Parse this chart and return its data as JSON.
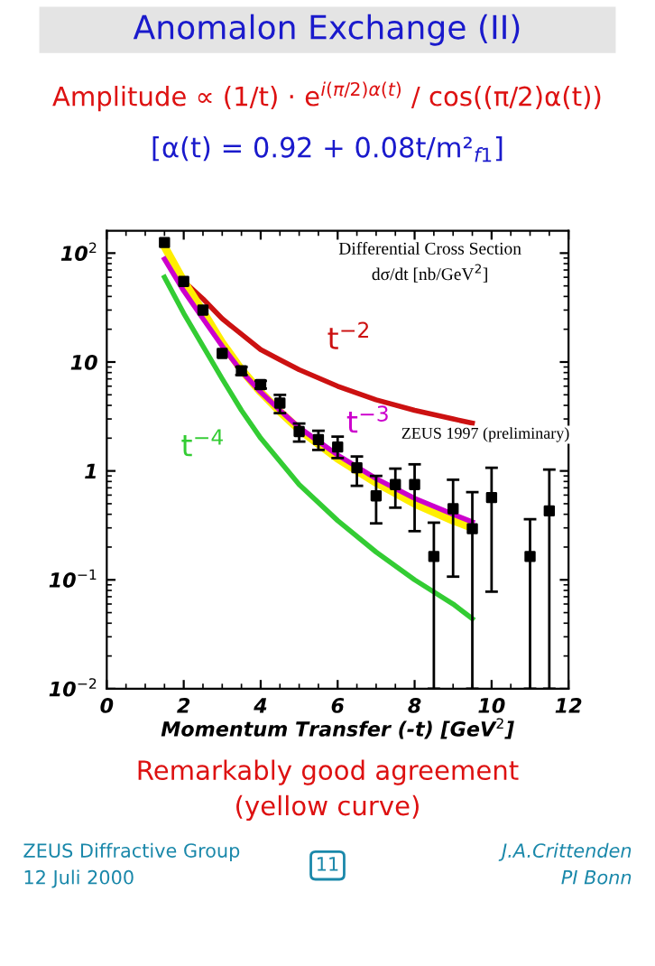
{
  "chart_data": {
    "type": "line",
    "title": "Anomalon Exchange (II)",
    "subtitle": "Amplitude ∝ (1/t) · e$^{i(π/2)α(t)}$ / cos((π/2)α(t))",
    "xlabel": "Momentum Transfer (-t) [GeV$^{2}$]",
    "ylabel": "Differential Cross Section\ndσ/dt [nb/GeV$^{2}$]",
    "annotations": [
      "[α(t) = 0.92 + 0.08t/m²$_{f1}$]",
      "Remarkably good agreement\n(yellow curve)",
      "ZEUS Diffractive Group\n12 Juli 2000",
      "11",
      "J.A.Crittenden\nPI Bonn"
    ],
    "log": "y",
    "xlim": [
      0,
      12
    ],
    "xticks": [
      0,
      2,
      4,
      6,
      8,
      10,
      12
    ],
    "ylim": [
      0.01,
      160
    ],
    "yticks": [
      {
        "value": 0.01,
        "label": "10$^{−2}$"
      },
      {
        "value": 0.1,
        "label": "10$^{−1}$"
      },
      {
        "value": 1,
        "label": "1"
      },
      {
        "value": 10,
        "label": "10"
      },
      {
        "value": 100,
        "label": "10$^{2}$"
      }
    ],
    "grid": false,
    "line_style": "solid",
    "series": [
      {
        "name": "t$^{−2}$",
        "color": "#cc1111",
        "x": [
          1.7,
          2,
          2.5,
          3,
          3.5,
          4,
          4.5,
          5,
          6,
          7,
          8,
          9,
          9.5
        ],
        "values": [
          83,
          55,
          38,
          25,
          18,
          13,
          10.5,
          8.5,
          6,
          4.5,
          3.6,
          3,
          2.75
        ]
      },
      {
        "name": "t$^{−4}$",
        "color": "#33cc33",
        "x": [
          1.5,
          2,
          2.5,
          3,
          3.5,
          4,
          5,
          6,
          7,
          8,
          9,
          9.5
        ],
        "values": [
          60,
          28,
          14,
          7,
          3.6,
          2.0,
          0.75,
          0.35,
          0.18,
          0.1,
          0.06,
          0.044
        ]
      },
      {
        "color": "#ffee00",
        "x": [
          1.5,
          2,
          2.5,
          3,
          3.5,
          4,
          4.5,
          5,
          6,
          7,
          8,
          9,
          9.5
        ],
        "values": [
          115,
          55,
          29,
          15,
          8.5,
          5.3,
          3.5,
          2.4,
          1.3,
          0.78,
          0.5,
          0.35,
          0.3
        ]
      },
      {
        "name": "t$^{−3}$",
        "color": "#cc00cc",
        "x": [
          1.5,
          2,
          2.5,
          3,
          3.5,
          4,
          4.5,
          5,
          6,
          7,
          8,
          9,
          9.5
        ],
        "values": [
          88,
          45,
          25,
          14,
          8.2,
          5.3,
          3.6,
          2.5,
          1.4,
          0.85,
          0.56,
          0.4,
          0.34
        ]
      },
      {
        "name": "ZEUS 1997 (preliminary)",
        "type": "scatter",
        "marker": "square",
        "color": "#000000",
        "x": [
          1.5,
          2,
          2.5,
          3,
          3.5,
          4,
          4.5,
          5,
          5.5,
          6,
          6.5,
          7,
          7.5,
          8,
          8.5,
          9,
          9.5,
          10,
          11,
          11.5
        ],
        "values": [
          125,
          55,
          30,
          12,
          8.3,
          6.2,
          4.2,
          2.3,
          1.94,
          1.66,
          1.07,
          0.59,
          0.75,
          0.75,
          0.164,
          0.45,
          0.295,
          0.57,
          0.164,
          0.43
        ],
        "errors": [
          null,
          null,
          null,
          null,
          [
            7.6,
            9.0
          ],
          [
            5.7,
            6.7
          ],
          [
            3.4,
            5.0
          ],
          [
            1.86,
            2.73
          ],
          [
            1.56,
            2.34
          ],
          [
            1.31,
            2.07
          ],
          [
            0.73,
            1.36
          ],
          [
            0.33,
            0.9
          ],
          [
            0.46,
            1.05
          ],
          [
            0.28,
            1.15
          ],
          [
            0.01,
            0.335
          ],
          [
            0.107,
            0.83
          ],
          [
            0.01,
            0.64
          ],
          [
            0.078,
            1.07
          ],
          [
            0.01,
            0.36
          ],
          [
            0.01,
            1.03
          ]
        ]
      }
    ]
  }
}
